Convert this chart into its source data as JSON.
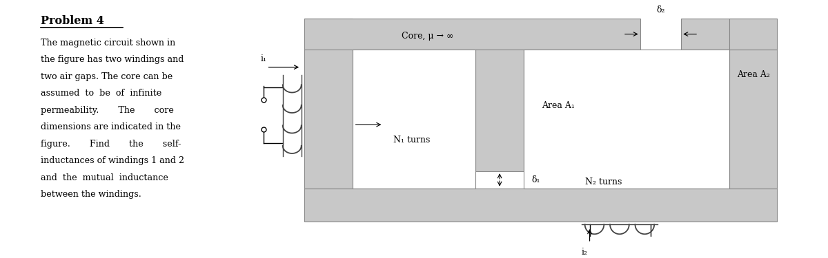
{
  "title": "Problem 4",
  "background_color": "#ffffff",
  "text_color": "#000000",
  "core_fill": "#c8c8c8",
  "core_edge": "#888888",
  "problem_text_lines": [
    "The magnetic circuit shown in",
    "the figure has two windings and",
    "two air gaps. The core can be",
    "assumed  to  be  of  infinite",
    "permeability.       The       core",
    "dimensions are indicated in the",
    "figure.       Find       the       self-",
    "inductances of windings 1 and 2",
    "and  the  mutual  inductance",
    "between the windings."
  ],
  "core_label": "Core, μ → ∞",
  "area1_label": "Area A₁",
  "area2_label": "Area A₂",
  "n1_label": "N₁ turns",
  "n2_label": "N₂ turns",
  "g1_label": "δ₁",
  "g2_label": "δ₂",
  "i1_label": "i₁",
  "i2_label": "i₂"
}
